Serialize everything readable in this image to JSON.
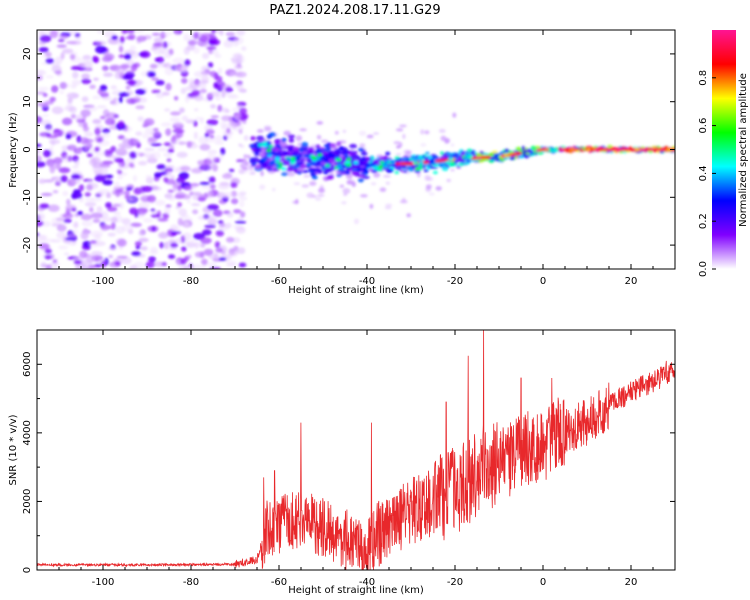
{
  "figure": {
    "title": "PAZ1.2024.208.17.11.G29"
  },
  "chart_data": [
    {
      "type": "heatmap",
      "xlabel": "Height of straight line (km)",
      "ylabel": "Frequency (Hz)",
      "xlim": [
        -115,
        30
      ],
      "ylim": [
        -25,
        25
      ],
      "xticks": [
        -100,
        -80,
        -60,
        -40,
        -20,
        0,
        20
      ],
      "yticks": [
        -20,
        -10,
        0,
        10,
        20
      ],
      "colorbar": {
        "label": "Normalized spectral amplitude",
        "range": [
          0,
          1
        ],
        "ticks": [
          0.0,
          0.2,
          0.4,
          0.6,
          0.8
        ],
        "colors": [
          "#ffffff",
          "#8000ff",
          "#0000ff",
          "#00ffff",
          "#00ff00",
          "#ffff00",
          "#ff0000",
          "#ff1493"
        ]
      },
      "ridge": [
        {
          "x": -62,
          "y": -1.0
        },
        {
          "x": -55,
          "y": -2.0
        },
        {
          "x": -48,
          "y": -2.0
        },
        {
          "x": -40,
          "y": -3.0
        },
        {
          "x": -30,
          "y": -3.0
        },
        {
          "x": -20,
          "y": -2.0
        },
        {
          "x": -10,
          "y": -1.5
        },
        {
          "x": 0,
          "y": 0.0
        },
        {
          "x": 10,
          "y": 0.0
        },
        {
          "x": 20,
          "y": 0.0
        },
        {
          "x": 30,
          "y": 0.0
        }
      ]
    },
    {
      "type": "line",
      "xlabel": "Height of straight line (km)",
      "ylabel": "SNR (10 * v/v)",
      "xlim": [
        -115,
        30
      ],
      "ylim": [
        0,
        7000
      ],
      "xticks": [
        -100,
        -80,
        -60,
        -40,
        -20,
        0,
        20
      ],
      "yticks": [
        0,
        2000,
        4000,
        6000
      ],
      "line_color": "#e8282b",
      "series": [
        {
          "x": [
            -115,
            -100,
            -80,
            -70,
            -65,
            -63,
            -60,
            -55,
            -50,
            -45,
            -40,
            -38,
            -35,
            -30,
            -25,
            -20,
            -15,
            -13,
            -10,
            -5,
            0,
            5,
            10,
            15,
            20,
            25,
            30
          ],
          "values": [
            150,
            150,
            150,
            170,
            300,
            1200,
            1300,
            1500,
            1200,
            900,
            500,
            1000,
            1200,
            1700,
            2000,
            2300,
            2800,
            3100,
            3000,
            3500,
            3600,
            4100,
            4300,
            4800,
            5200,
            5500,
            5850
          ]
        }
      ],
      "peaks": [
        {
          "x": -63.5,
          "y": 2700
        },
        {
          "x": -61,
          "y": 2900
        },
        {
          "x": -55,
          "y": 4300
        },
        {
          "x": -39,
          "y": 4300
        },
        {
          "x": -22,
          "y": 4900
        },
        {
          "x": -17,
          "y": 6250
        },
        {
          "x": -13.5,
          "y": 7000
        },
        {
          "x": -5,
          "y": 5600
        },
        {
          "x": 2,
          "y": 5600
        },
        {
          "x": 13,
          "y": 4600
        },
        {
          "x": 28,
          "y": 6100
        }
      ]
    }
  ]
}
